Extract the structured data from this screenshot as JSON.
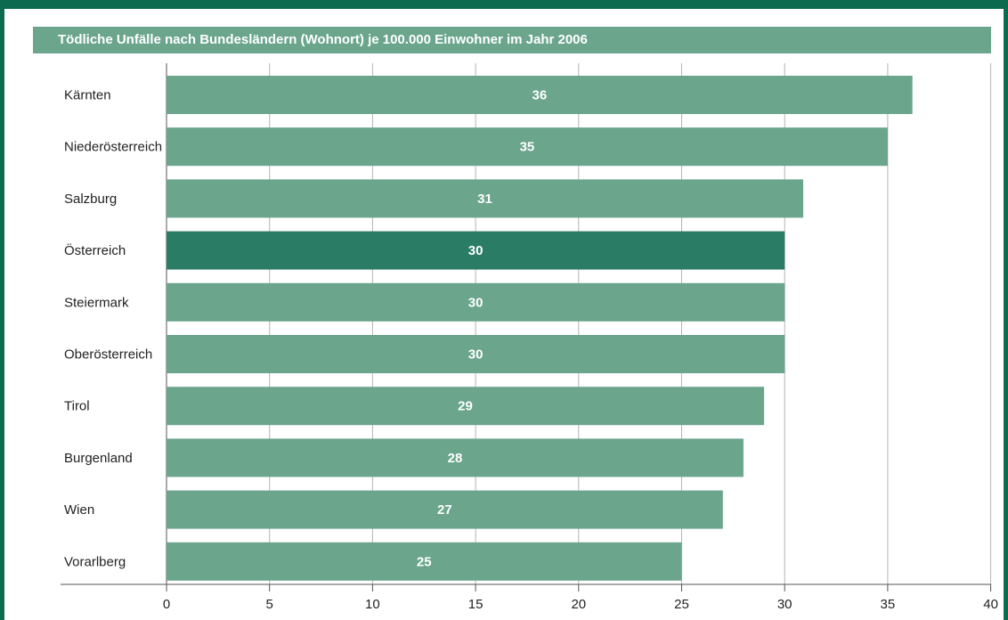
{
  "chart_data": {
    "type": "bar",
    "orientation": "horizontal",
    "title": "Tödliche Unfälle nach Bundesländern (Wohnort) je 100.000 Einwohner im Jahr 2006",
    "categories": [
      "Kärnten",
      "Niederösterreich",
      "Salzburg",
      "Österreich",
      "Steiermark",
      "Oberösterreich",
      "Tirol",
      "Burgenland",
      "Wien",
      "Vorarlberg"
    ],
    "values": [
      36.2,
      35,
      30.9,
      30,
      30,
      30,
      29,
      28,
      27,
      25
    ],
    "value_labels": [
      "36",
      "35",
      "31",
      "30",
      "30",
      "30",
      "29",
      "28",
      "27",
      "25"
    ],
    "highlight_index": 3,
    "xlim": [
      0,
      40
    ],
    "xticks": [
      0,
      5,
      10,
      15,
      20,
      25,
      30,
      35,
      40
    ],
    "grid": true,
    "colors": {
      "bar": "#6aa58c",
      "highlight": "#2a7c64",
      "frame": "#0c6b4f",
      "title_bg": "#6aa58c",
      "grid": "#b4b4b4"
    }
  }
}
